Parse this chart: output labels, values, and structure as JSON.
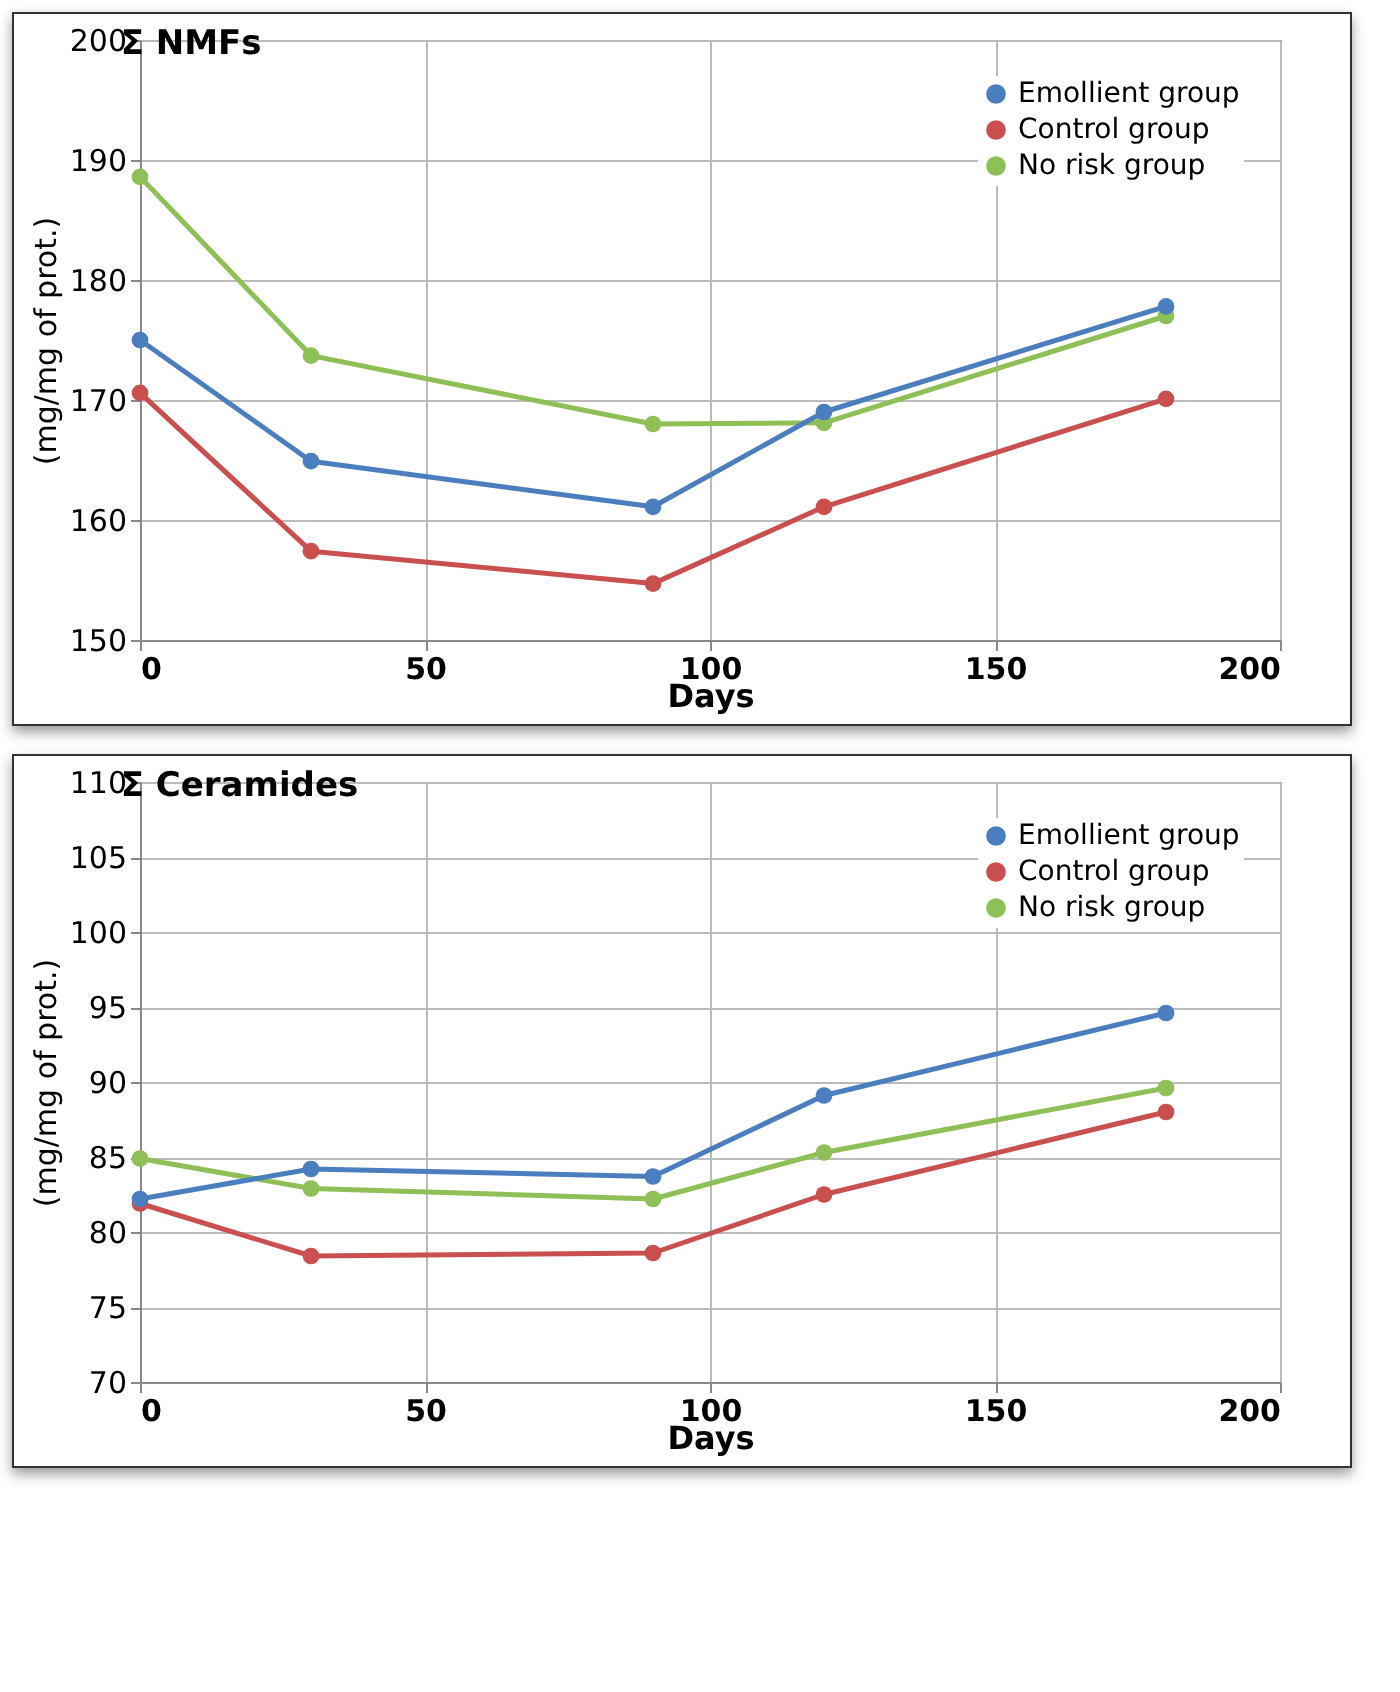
{
  "chart_data": [
    {
      "type": "line",
      "title": "Σ NMFs",
      "xlabel": "Days",
      "ylabel": "(mg/mg of prot.)",
      "x": [
        0,
        30,
        90,
        120,
        180
      ],
      "series": [
        {
          "name": "Emollient group",
          "color": "#4a7ebf",
          "values": [
            175,
            164.9,
            161.1,
            169,
            177.8
          ]
        },
        {
          "name": "Control group",
          "color": "#c9504f",
          "values": [
            170.6,
            157.4,
            154.7,
            161.1,
            170.1
          ]
        },
        {
          "name": "No risk group",
          "color": "#8fbf57",
          "values": [
            188.6,
            173.7,
            168,
            168.1,
            177
          ]
        }
      ],
      "xlim": [
        0,
        200
      ],
      "xticks": [
        0,
        50,
        100,
        150,
        200
      ],
      "ylim": [
        150,
        200
      ],
      "yticks": [
        150,
        160,
        170,
        180,
        190,
        200
      ],
      "grid": true,
      "legend": "top right",
      "marker": "circle"
    },
    {
      "type": "line",
      "title": "Σ Ceramides",
      "xlabel": "Days",
      "ylabel": "(mg/mg of prot.)",
      "x": [
        0,
        30,
        90,
        120,
        180
      ],
      "series": [
        {
          "name": "Emollient group",
          "color": "#4a7ebf",
          "values": [
            82.2,
            84.2,
            83.7,
            89.1,
            94.6
          ]
        },
        {
          "name": "Control group",
          "color": "#c9504f",
          "values": [
            81.9,
            78.4,
            78.6,
            82.5,
            88
          ]
        },
        {
          "name": "No risk group",
          "color": "#8fbf57",
          "values": [
            84.9,
            82.9,
            82.2,
            85.3,
            89.6
          ]
        }
      ],
      "xlim": [
        0,
        200
      ],
      "xticks": [
        0,
        50,
        100,
        150,
        200
      ],
      "ylim": [
        70,
        110
      ],
      "yticks": [
        70,
        75,
        80,
        85,
        90,
        95,
        100,
        105,
        110
      ],
      "grid": true,
      "legend": "top right",
      "marker": "circle"
    }
  ]
}
